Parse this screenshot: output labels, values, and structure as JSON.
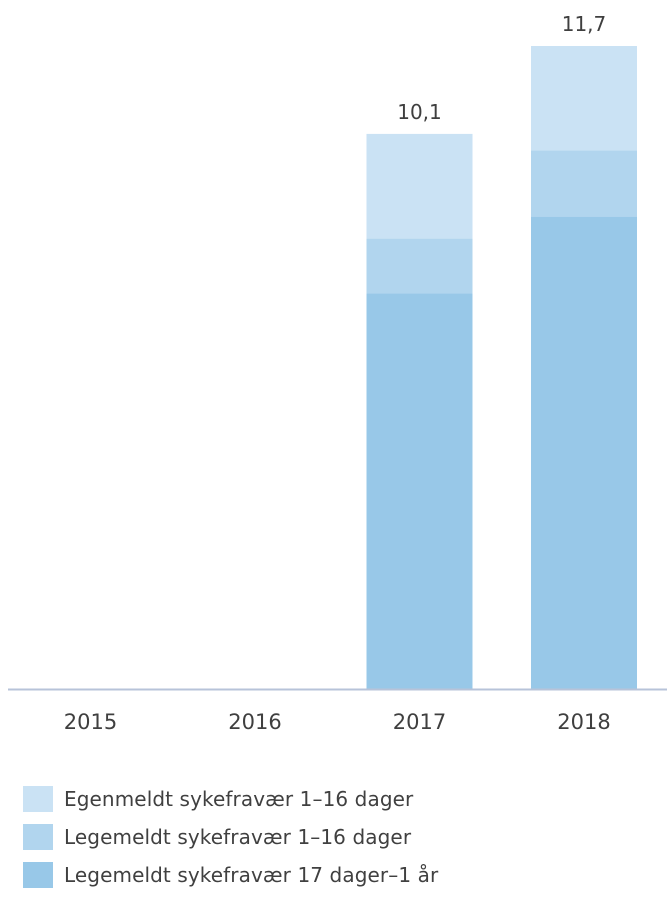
{
  "chart_data": {
    "type": "bar",
    "stacked": true,
    "categories": [
      "2015",
      "2016",
      "2017",
      "2018"
    ],
    "series": [
      {
        "name": "Legemeldt sykefravær 17 dager–1 år",
        "color": "#98c8e8",
        "values": [
          null,
          null,
          7.2,
          8.6
        ]
      },
      {
        "name": "Legemeldt sykefravær 1–16 dager",
        "color": "#b1d5ee",
        "values": [
          null,
          null,
          1.0,
          1.2
        ]
      },
      {
        "name": "Egenmeldt sykefravær 1–16 dager",
        "color": "#cae2f4",
        "values": [
          null,
          null,
          1.9,
          1.9
        ]
      }
    ],
    "totals": [
      "",
      "",
      "10,1",
      "11,7"
    ],
    "ylim": [
      0,
      11.7
    ],
    "grid": false,
    "legend_position": "bottom-left",
    "axis_color": "#b7c3d9"
  }
}
